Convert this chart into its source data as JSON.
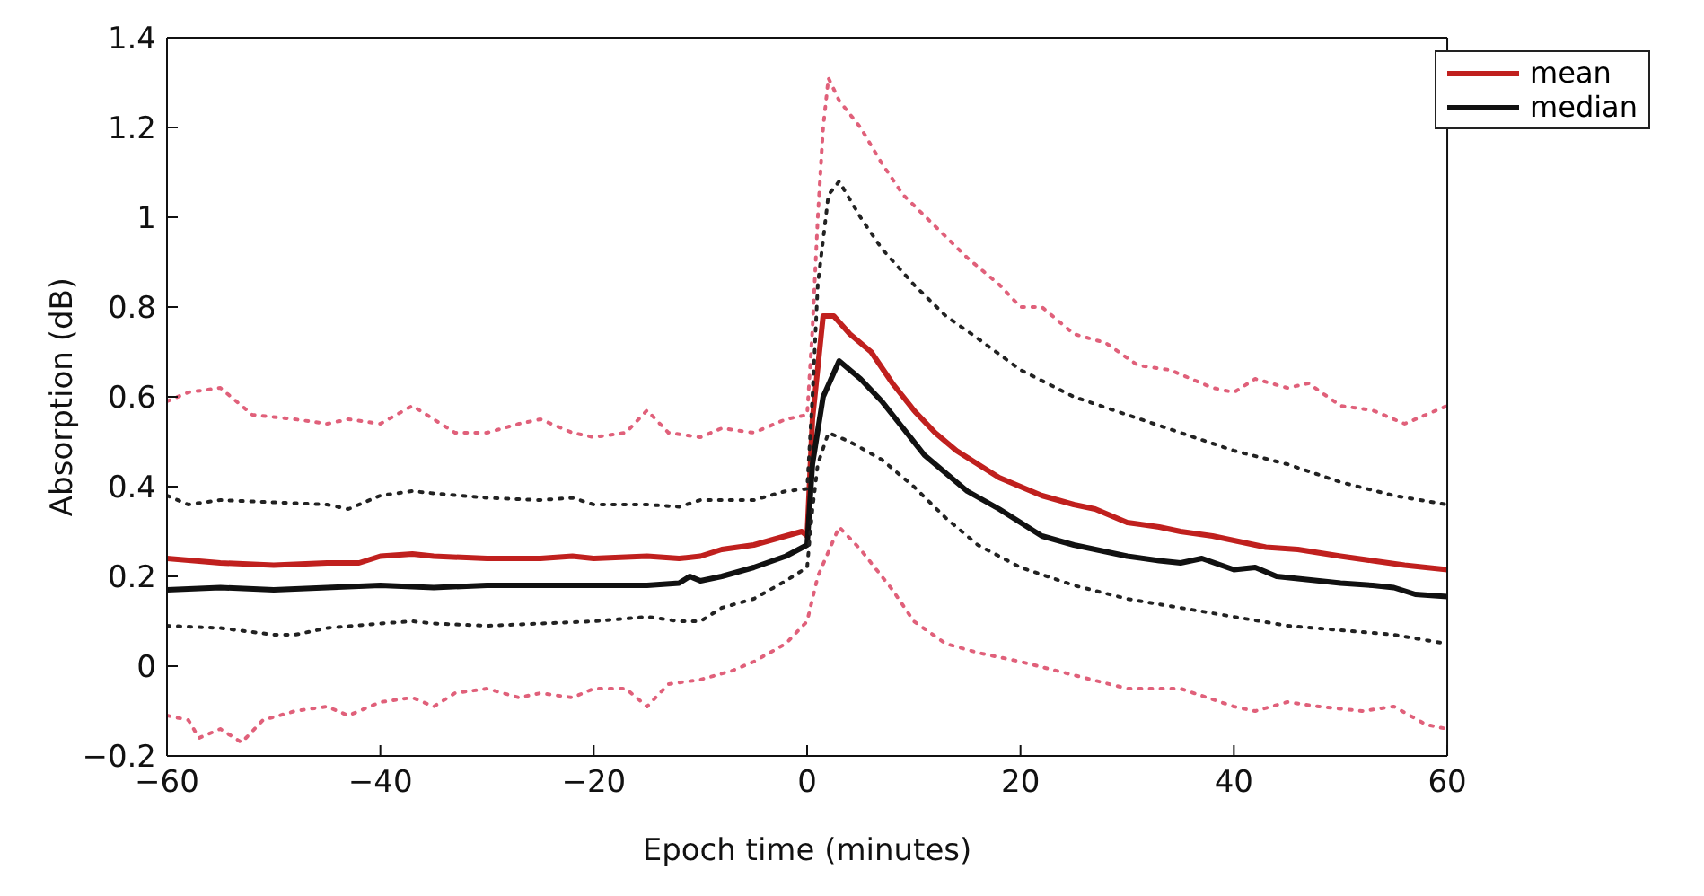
{
  "chart_data": {
    "type": "line",
    "xlabel": "Epoch time (minutes)",
    "ylabel": "Absorption (dB)",
    "xlim": [
      -60,
      60
    ],
    "xticks": [
      {
        "value": -60,
        "label": "−60"
      },
      {
        "value": -40,
        "label": "−40"
      },
      {
        "value": -20,
        "label": "−20"
      },
      0,
      20,
      40,
      60
    ],
    "ylim": [
      -0.2,
      1.4
    ],
    "yticks": [
      {
        "value": -0.2,
        "label": "−0.2"
      },
      0,
      0.2,
      0.4,
      0.6,
      0.8,
      1,
      1.2,
      1.4
    ],
    "grid": false,
    "legend": "top right",
    "marker": "none",
    "series": [
      {
        "name": "mean",
        "color": "#c0201e",
        "line_style": "solid",
        "x": [
          -60,
          -55,
          -50,
          -45,
          -42,
          -40,
          -37,
          -35,
          -30,
          -25,
          -22,
          -20,
          -15,
          -12,
          -10,
          -8,
          -5,
          -2,
          -0.5,
          0,
          0.5,
          1.5,
          2.5,
          4,
          6,
          8,
          10,
          12,
          14,
          16,
          18,
          20,
          22,
          25,
          27,
          30,
          33,
          35,
          38,
          40,
          43,
          46,
          50,
          53,
          56,
          60
        ],
        "values": [
          0.24,
          0.23,
          0.225,
          0.23,
          0.23,
          0.245,
          0.25,
          0.245,
          0.24,
          0.24,
          0.245,
          0.24,
          0.245,
          0.24,
          0.245,
          0.26,
          0.27,
          0.29,
          0.3,
          0.29,
          0.55,
          0.78,
          0.78,
          0.74,
          0.7,
          0.63,
          0.57,
          0.52,
          0.48,
          0.45,
          0.42,
          0.4,
          0.38,
          0.36,
          0.35,
          0.32,
          0.31,
          0.3,
          0.29,
          0.28,
          0.265,
          0.26,
          0.245,
          0.235,
          0.225,
          0.215
        ]
      },
      {
        "name": "median",
        "color": "#111111",
        "line_style": "solid",
        "x": [
          -60,
          -55,
          -50,
          -45,
          -40,
          -35,
          -30,
          -25,
          -20,
          -15,
          -12,
          -11,
          -10,
          -8,
          -5,
          -2,
          0,
          0.5,
          1.5,
          3,
          5,
          7,
          9,
          11,
          13,
          15,
          18,
          20,
          22,
          25,
          28,
          30,
          33,
          35,
          37,
          40,
          42,
          44,
          46,
          50,
          53,
          55,
          57,
          60
        ],
        "values": [
          0.17,
          0.175,
          0.17,
          0.175,
          0.18,
          0.175,
          0.18,
          0.18,
          0.18,
          0.18,
          0.185,
          0.2,
          0.19,
          0.2,
          0.22,
          0.245,
          0.27,
          0.45,
          0.6,
          0.68,
          0.64,
          0.59,
          0.53,
          0.47,
          0.43,
          0.39,
          0.35,
          0.32,
          0.29,
          0.27,
          0.255,
          0.245,
          0.235,
          0.23,
          0.24,
          0.215,
          0.22,
          0.2,
          0.195,
          0.185,
          0.18,
          0.175,
          0.16,
          0.155
        ]
      },
      {
        "color": "#e0607a",
        "line_style": "dotted",
        "x": [
          -60,
          -58,
          -55,
          -52,
          -48,
          -45,
          -43,
          -40,
          -37,
          -35,
          -33,
          -30,
          -27,
          -25,
          -22,
          -20,
          -17,
          -15,
          -13,
          -10,
          -8,
          -5,
          -2,
          0,
          0.5,
          1,
          1.5,
          2,
          3,
          5,
          7,
          9,
          12,
          15,
          18,
          20,
          22,
          25,
          28,
          31,
          34,
          38,
          40,
          42,
          45,
          47,
          50,
          53,
          56,
          58,
          60
        ],
        "values": [
          0.59,
          0.61,
          0.62,
          0.56,
          0.55,
          0.54,
          0.55,
          0.54,
          0.58,
          0.55,
          0.52,
          0.52,
          0.54,
          0.55,
          0.52,
          0.51,
          0.52,
          0.57,
          0.52,
          0.51,
          0.53,
          0.52,
          0.55,
          0.56,
          0.75,
          1.0,
          1.2,
          1.31,
          1.26,
          1.2,
          1.12,
          1.05,
          0.98,
          0.91,
          0.85,
          0.8,
          0.8,
          0.74,
          0.72,
          0.67,
          0.66,
          0.62,
          0.61,
          0.64,
          0.62,
          0.63,
          0.58,
          0.57,
          0.54,
          0.56,
          0.58
        ]
      },
      {
        "color": "#222222",
        "line_style": "dotted",
        "x": [
          -60,
          -58,
          -55,
          -50,
          -45,
          -43,
          -40,
          -37,
          -35,
          -30,
          -25,
          -22,
          -20,
          -15,
          -12,
          -10,
          -5,
          -2,
          0,
          0.5,
          1,
          2,
          3,
          5,
          7,
          10,
          13,
          16,
          20,
          25,
          30,
          35,
          40,
          45,
          50,
          55,
          60
        ],
        "values": [
          0.38,
          0.36,
          0.37,
          0.365,
          0.36,
          0.35,
          0.38,
          0.39,
          0.385,
          0.375,
          0.37,
          0.375,
          0.36,
          0.36,
          0.355,
          0.37,
          0.37,
          0.39,
          0.395,
          0.6,
          0.85,
          1.05,
          1.08,
          1.0,
          0.93,
          0.85,
          0.78,
          0.73,
          0.66,
          0.6,
          0.56,
          0.52,
          0.48,
          0.45,
          0.41,
          0.38,
          0.36
        ]
      },
      {
        "color": "#222222",
        "line_style": "dotted",
        "x": [
          -60,
          -55,
          -50,
          -48,
          -45,
          -40,
          -37,
          -35,
          -30,
          -25,
          -20,
          -15,
          -12,
          -10,
          -8,
          -5,
          -2,
          0,
          0.5,
          1,
          2,
          4,
          7,
          10,
          13,
          16,
          20,
          25,
          30,
          35,
          40,
          45,
          50,
          55,
          60
        ],
        "values": [
          0.09,
          0.085,
          0.07,
          0.07,
          0.085,
          0.095,
          0.1,
          0.095,
          0.09,
          0.095,
          0.1,
          0.11,
          0.1,
          0.1,
          0.13,
          0.15,
          0.19,
          0.22,
          0.35,
          0.45,
          0.52,
          0.5,
          0.46,
          0.4,
          0.33,
          0.27,
          0.22,
          0.18,
          0.15,
          0.13,
          0.11,
          0.09,
          0.08,
          0.07,
          0.05
        ]
      },
      {
        "color": "#e0607a",
        "line_style": "dotted",
        "x": [
          -60,
          -58,
          -57,
          -55,
          -53,
          -51,
          -48,
          -45,
          -43,
          -40,
          -37,
          -35,
          -33,
          -30,
          -27,
          -25,
          -22,
          -20,
          -17,
          -15,
          -13,
          -10,
          -7,
          -5,
          -2,
          0,
          1,
          3,
          5,
          8,
          10,
          13,
          16,
          20,
          25,
          30,
          35,
          40,
          42,
          45,
          48,
          52,
          55,
          58,
          60
        ],
        "values": [
          -0.11,
          -0.12,
          -0.16,
          -0.14,
          -0.17,
          -0.12,
          -0.1,
          -0.09,
          -0.11,
          -0.08,
          -0.07,
          -0.09,
          -0.06,
          -0.05,
          -0.07,
          -0.06,
          -0.07,
          -0.05,
          -0.05,
          -0.09,
          -0.04,
          -0.03,
          -0.01,
          0.01,
          0.05,
          0.1,
          0.2,
          0.31,
          0.26,
          0.17,
          0.1,
          0.05,
          0.03,
          0.01,
          -0.02,
          -0.05,
          -0.05,
          -0.09,
          -0.1,
          -0.08,
          -0.09,
          -0.1,
          -0.09,
          -0.13,
          -0.14
        ]
      }
    ]
  }
}
